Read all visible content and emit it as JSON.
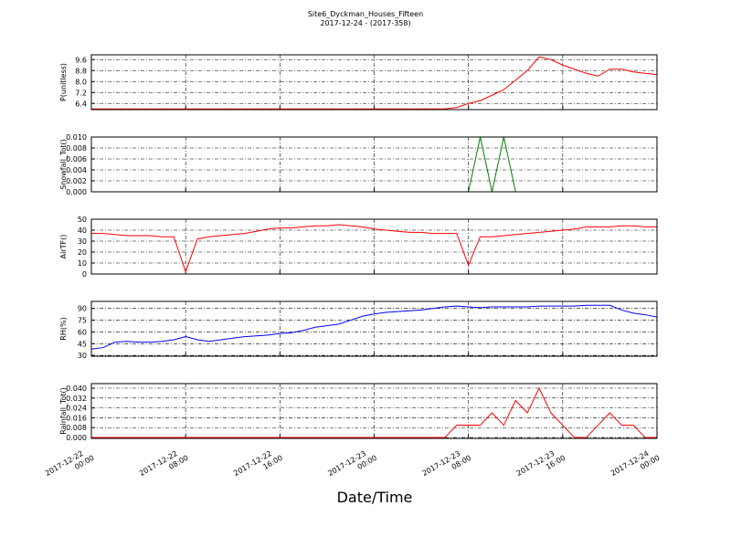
{
  "chart_data": [
    {
      "type": "line",
      "title": "Site6_Dyckman_Houses_Fifteen",
      "subtitle": "2017-12-24 - (2017-358)",
      "ylabel": "P(unitless)",
      "grid": true,
      "xlim": [
        "2017-12-22 00:00",
        "2017-12-24 00:00"
      ],
      "ylim": [
        5.95,
        9.95
      ],
      "yticks": [
        6.4,
        7.2,
        {
          "value": 8.0,
          "label": "8.0"
        },
        8.8,
        9.6
      ],
      "x": [
        "2017-12-22 00:00",
        "2017-12-22 01:00",
        "2017-12-22 02:00",
        "2017-12-22 03:00",
        "2017-12-22 04:00",
        "2017-12-22 05:00",
        "2017-12-22 06:00",
        "2017-12-22 07:00",
        "2017-12-22 08:00",
        "2017-12-22 09:00",
        "2017-12-22 10:00",
        "2017-12-22 11:00",
        "2017-12-22 12:00",
        "2017-12-22 13:00",
        "2017-12-22 14:00",
        "2017-12-22 15:00",
        "2017-12-22 16:00",
        "2017-12-22 17:00",
        "2017-12-22 18:00",
        "2017-12-22 19:00",
        "2017-12-22 20:00",
        "2017-12-22 21:00",
        "2017-12-22 22:00",
        "2017-12-22 23:00",
        "2017-12-23 00:00",
        "2017-12-23 01:00",
        "2017-12-23 02:00",
        "2017-12-23 03:00",
        "2017-12-23 04:00",
        "2017-12-23 05:00",
        "2017-12-23 06:00",
        "2017-12-23 07:00",
        "2017-12-23 08:00",
        "2017-12-23 09:00",
        "2017-12-23 10:00",
        "2017-12-23 11:00",
        "2017-12-23 12:00",
        "2017-12-23 13:00",
        "2017-12-23 14:00",
        "2017-12-23 15:00",
        "2017-12-23 16:00",
        "2017-12-23 17:00",
        "2017-12-23 18:00",
        "2017-12-23 19:00",
        "2017-12-23 20:00",
        "2017-12-23 21:00",
        "2017-12-23 22:00",
        "2017-12-23 23:00",
        "2017-12-24 00:00"
      ],
      "series": [
        {
          "color": "#ff0000",
          "values": [
            6.0,
            6.0,
            6.0,
            6.0,
            6.0,
            6.0,
            6.0,
            6.0,
            6.0,
            6.0,
            6.0,
            6.0,
            6.0,
            6.0,
            6.0,
            6.0,
            6.0,
            6.0,
            6.0,
            6.0,
            6.0,
            6.0,
            6.0,
            6.0,
            6.0,
            6.0,
            6.0,
            6.0,
            6.0,
            6.0,
            6.0,
            6.1,
            6.4,
            6.6,
            7.0,
            7.4,
            8.1,
            8.8,
            9.8,
            9.6,
            9.2,
            8.9,
            8.6,
            8.4,
            8.9,
            8.9,
            8.7,
            8.6,
            8.5
          ]
        }
      ]
    },
    {
      "type": "line",
      "ylabel": "Snowfall_Tot()",
      "grid": true,
      "xlim": [
        "2017-12-22 00:00",
        "2017-12-24 00:00"
      ],
      "ylim": [
        0,
        0.01
      ],
      "yticks": [
        {
          "value": 0,
          "label": "0.000"
        },
        {
          "value": 0.002,
          "label": "0.002"
        },
        {
          "value": 0.004,
          "label": "0.004"
        },
        {
          "value": 0.006,
          "label": "0.006"
        },
        {
          "value": 0.008,
          "label": "0.008"
        },
        {
          "value": 0.01,
          "label": "0.010"
        }
      ],
      "x": [
        "2017-12-22 00:00",
        "2017-12-22 01:00",
        "2017-12-22 02:00",
        "2017-12-22 03:00",
        "2017-12-22 04:00",
        "2017-12-22 05:00",
        "2017-12-22 06:00",
        "2017-12-22 07:00",
        "2017-12-22 08:00",
        "2017-12-22 09:00",
        "2017-12-22 10:00",
        "2017-12-22 11:00",
        "2017-12-22 12:00",
        "2017-12-22 13:00",
        "2017-12-22 14:00",
        "2017-12-22 15:00",
        "2017-12-22 16:00",
        "2017-12-22 17:00",
        "2017-12-22 18:00",
        "2017-12-22 19:00",
        "2017-12-22 20:00",
        "2017-12-22 21:00",
        "2017-12-22 22:00",
        "2017-12-22 23:00",
        "2017-12-23 00:00",
        "2017-12-23 01:00",
        "2017-12-23 02:00",
        "2017-12-23 03:00",
        "2017-12-23 04:00",
        "2017-12-23 05:00",
        "2017-12-23 06:00",
        "2017-12-23 07:00",
        "2017-12-23 08:00",
        "2017-12-23 09:00",
        "2017-12-23 10:00",
        "2017-12-23 11:00",
        "2017-12-23 12:00",
        "2017-12-23 13:00",
        "2017-12-23 14:00",
        "2017-12-23 15:00",
        "2017-12-23 16:00",
        "2017-12-23 17:00",
        "2017-12-23 18:00",
        "2017-12-23 19:00",
        "2017-12-23 20:00",
        "2017-12-23 21:00",
        "2017-12-23 22:00",
        "2017-12-23 23:00",
        "2017-12-24 00:00"
      ],
      "series": [
        {
          "color": "#007f00",
          "values": [
            0,
            0,
            0,
            0,
            0,
            0,
            0,
            0,
            0,
            0,
            0,
            0,
            0,
            0,
            0,
            0,
            0,
            0,
            0,
            0,
            0,
            0,
            0,
            0,
            0,
            0,
            0,
            0,
            0,
            0,
            0,
            0,
            0,
            0.01,
            0,
            0.01,
            0,
            0,
            0,
            0,
            0,
            0,
            0,
            0,
            0,
            0,
            0,
            0,
            0
          ]
        }
      ]
    },
    {
      "type": "line",
      "ylabel": "AirTF()",
      "grid": true,
      "xlim": [
        "2017-12-22 00:00",
        "2017-12-24 00:00"
      ],
      "ylim": [
        0,
        50
      ],
      "yticks": [
        0,
        10,
        20,
        30,
        40,
        50
      ],
      "x": [
        "2017-12-22 00:00",
        "2017-12-22 01:00",
        "2017-12-22 02:00",
        "2017-12-22 03:00",
        "2017-12-22 04:00",
        "2017-12-22 05:00",
        "2017-12-22 06:00",
        "2017-12-22 07:00",
        "2017-12-22 08:00",
        "2017-12-22 09:00",
        "2017-12-22 10:00",
        "2017-12-22 11:00",
        "2017-12-22 12:00",
        "2017-12-22 13:00",
        "2017-12-22 14:00",
        "2017-12-22 15:00",
        "2017-12-22 16:00",
        "2017-12-22 17:00",
        "2017-12-22 18:00",
        "2017-12-22 19:00",
        "2017-12-22 20:00",
        "2017-12-22 21:00",
        "2017-12-22 22:00",
        "2017-12-22 23:00",
        "2017-12-23 00:00",
        "2017-12-23 01:00",
        "2017-12-23 02:00",
        "2017-12-23 03:00",
        "2017-12-23 04:00",
        "2017-12-23 05:00",
        "2017-12-23 06:00",
        "2017-12-23 07:00",
        "2017-12-23 08:00",
        "2017-12-23 09:00",
        "2017-12-23 10:00",
        "2017-12-23 11:00",
        "2017-12-23 12:00",
        "2017-12-23 13:00",
        "2017-12-23 14:00",
        "2017-12-23 15:00",
        "2017-12-23 16:00",
        "2017-12-23 17:00",
        "2017-12-23 18:00",
        "2017-12-23 19:00",
        "2017-12-23 20:00",
        "2017-12-23 21:00",
        "2017-12-23 22:00",
        "2017-12-23 23:00",
        "2017-12-24 00:00"
      ],
      "series": [
        {
          "color": "#ff0000",
          "values": [
            37,
            37,
            36,
            35,
            35,
            35,
            34,
            34,
            2,
            32,
            34,
            35,
            36,
            37,
            39,
            41,
            42,
            42,
            43,
            44,
            44,
            45,
            44,
            43,
            41,
            40,
            39,
            38,
            38,
            37,
            37,
            37,
            8,
            34,
            34,
            35,
            36,
            37,
            38,
            39,
            40,
            41,
            43,
            43,
            43,
            44,
            44,
            43,
            43
          ]
        }
      ]
    },
    {
      "type": "line",
      "ylabel": "RH(%)",
      "grid": true,
      "xlim": [
        "2017-12-22 00:00",
        "2017-12-24 00:00"
      ],
      "ylim": [
        29,
        99
      ],
      "yticks": [
        30,
        45,
        60,
        75,
        90
      ],
      "x": [
        "2017-12-22 00:00",
        "2017-12-22 01:00",
        "2017-12-22 02:00",
        "2017-12-22 03:00",
        "2017-12-22 04:00",
        "2017-12-22 05:00",
        "2017-12-22 06:00",
        "2017-12-22 07:00",
        "2017-12-22 08:00",
        "2017-12-22 09:00",
        "2017-12-22 10:00",
        "2017-12-22 11:00",
        "2017-12-22 12:00",
        "2017-12-22 13:00",
        "2017-12-22 14:00",
        "2017-12-22 15:00",
        "2017-12-22 16:00",
        "2017-12-22 17:00",
        "2017-12-22 18:00",
        "2017-12-22 19:00",
        "2017-12-22 20:00",
        "2017-12-22 21:00",
        "2017-12-22 22:00",
        "2017-12-22 23:00",
        "2017-12-23 00:00",
        "2017-12-23 01:00",
        "2017-12-23 02:00",
        "2017-12-23 03:00",
        "2017-12-23 04:00",
        "2017-12-23 05:00",
        "2017-12-23 06:00",
        "2017-12-23 07:00",
        "2017-12-23 08:00",
        "2017-12-23 09:00",
        "2017-12-23 10:00",
        "2017-12-23 11:00",
        "2017-12-23 12:00",
        "2017-12-23 13:00",
        "2017-12-23 14:00",
        "2017-12-23 15:00",
        "2017-12-23 16:00",
        "2017-12-23 17:00",
        "2017-12-23 18:00",
        "2017-12-23 19:00",
        "2017-12-23 20:00",
        "2017-12-23 21:00",
        "2017-12-23 22:00",
        "2017-12-23 23:00",
        "2017-12-24 00:00"
      ],
      "series": [
        {
          "color": "#0000ff",
          "values": [
            38,
            40,
            47,
            48,
            47,
            47,
            48,
            50,
            54,
            50,
            48,
            50,
            52,
            54,
            55,
            56,
            58,
            59,
            62,
            66,
            68,
            70,
            75,
            80,
            83,
            85,
            86,
            87,
            88,
            90,
            92,
            93,
            92,
            91,
            92,
            92,
            92,
            92,
            93,
            93,
            93,
            93,
            94,
            94,
            94,
            88,
            84,
            82,
            79
          ]
        }
      ]
    },
    {
      "type": "line",
      "ylabel": "Rainfall_Tot()",
      "xlabel": "Date/Time",
      "grid": true,
      "xlim": [
        "2017-12-22 00:00",
        "2017-12-24 00:00"
      ],
      "ylim": [
        -0.0007,
        0.0437
      ],
      "yticks": [
        {
          "value": 0,
          "label": "0.000"
        },
        {
          "value": 0.008,
          "label": "0.008"
        },
        {
          "value": 0.016,
          "label": "0.016"
        },
        {
          "value": 0.024,
          "label": "0.024"
        },
        {
          "value": 0.032,
          "label": "0.032"
        },
        {
          "value": 0.04,
          "label": "0.040"
        }
      ],
      "xticks": [
        "2017-12-22 00:00",
        "2017-12-22 08:00",
        "2017-12-22 16:00",
        "2017-12-23 00:00",
        "2017-12-23 08:00",
        "2017-12-23 16:00",
        "2017-12-24 00:00"
      ],
      "x": [
        "2017-12-22 00:00",
        "2017-12-22 01:00",
        "2017-12-22 02:00",
        "2017-12-22 03:00",
        "2017-12-22 04:00",
        "2017-12-22 05:00",
        "2017-12-22 06:00",
        "2017-12-22 07:00",
        "2017-12-22 08:00",
        "2017-12-22 09:00",
        "2017-12-22 10:00",
        "2017-12-22 11:00",
        "2017-12-22 12:00",
        "2017-12-22 13:00",
        "2017-12-22 14:00",
        "2017-12-22 15:00",
        "2017-12-22 16:00",
        "2017-12-22 17:00",
        "2017-12-22 18:00",
        "2017-12-22 19:00",
        "2017-12-22 20:00",
        "2017-12-22 21:00",
        "2017-12-22 22:00",
        "2017-12-22 23:00",
        "2017-12-23 00:00",
        "2017-12-23 01:00",
        "2017-12-23 02:00",
        "2017-12-23 03:00",
        "2017-12-23 04:00",
        "2017-12-23 05:00",
        "2017-12-23 06:00",
        "2017-12-23 07:00",
        "2017-12-23 08:00",
        "2017-12-23 09:00",
        "2017-12-23 10:00",
        "2017-12-23 11:00",
        "2017-12-23 12:00",
        "2017-12-23 13:00",
        "2017-12-23 14:00",
        "2017-12-23 15:00",
        "2017-12-23 16:00",
        "2017-12-23 17:00",
        "2017-12-23 18:00",
        "2017-12-23 19:00",
        "2017-12-23 20:00",
        "2017-12-23 21:00",
        "2017-12-23 22:00",
        "2017-12-23 23:00",
        "2017-12-24 00:00"
      ],
      "series": [
        {
          "color": "#ff0000",
          "values": [
            0,
            0,
            0,
            0,
            0,
            0,
            0,
            0,
            0,
            0,
            0,
            0,
            0,
            0,
            0,
            0,
            0,
            0,
            0,
            0,
            0,
            0,
            0,
            0,
            0,
            0,
            0,
            0,
            0,
            0,
            0,
            0.01,
            0.01,
            0.01,
            0.02,
            0.01,
            0.03,
            0.02,
            0.04,
            0.02,
            0.01,
            0,
            0,
            0.01,
            0.02,
            0.01,
            0.01,
            0,
            0
          ]
        }
      ]
    }
  ]
}
